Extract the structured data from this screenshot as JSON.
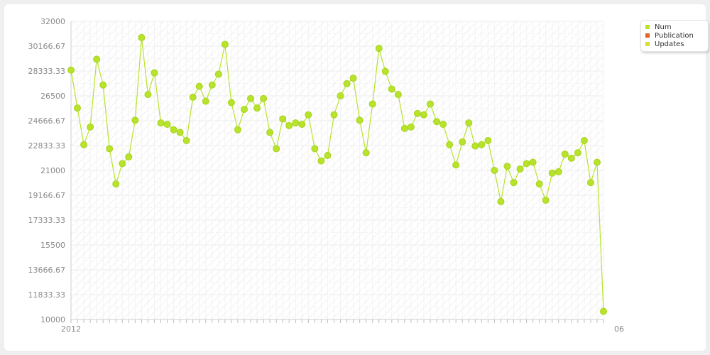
{
  "chart_data": {
    "type": "line",
    "title": "",
    "xlabel": "",
    "ylabel": "",
    "ylim": [
      10000,
      32000
    ],
    "ytick_labels": [
      "10000",
      "11833.33",
      "13666.67",
      "15500",
      "17333.33",
      "19166.67",
      "21000",
      "22833.33",
      "24666.67",
      "26500",
      "28333.33",
      "30166.67",
      "32000"
    ],
    "x_first_label": "2012",
    "x_last_label": "06",
    "grid": true,
    "legend_position": "top-right",
    "series": [
      {
        "name": "Num",
        "color": "#b7e32b",
        "values": [
          28400,
          25600,
          22900,
          24200,
          29200,
          27300,
          22600,
          20000,
          21500,
          22000,
          24700,
          30800,
          26600,
          28200,
          24500,
          24400,
          24000,
          23800,
          23200,
          26400,
          27200,
          26100,
          27300,
          28100,
          30300,
          26000,
          24000,
          25500,
          26300,
          25600,
          26300,
          23800,
          22600,
          24800,
          24300,
          24500,
          24400,
          25100,
          22600,
          21700,
          22100,
          25100,
          26500,
          27400,
          27800,
          24700,
          22300,
          25900,
          30000,
          28300,
          27000,
          26600,
          24100,
          24200,
          25200,
          25100,
          25900,
          24600,
          24400,
          22900,
          21400,
          23100,
          24500,
          22800,
          22900,
          23200,
          21000,
          18700,
          21300,
          20100,
          21100,
          21500,
          21600,
          20000,
          18800,
          20800,
          20900,
          22200,
          21900,
          22300,
          23200,
          20100,
          21600,
          10600
        ]
      }
    ],
    "legend": [
      {
        "name": "Num",
        "color": "#b7e32b"
      },
      {
        "name": "Publication",
        "color": "#e06422"
      },
      {
        "name": "Updates",
        "color": "#d8dc3e"
      }
    ]
  }
}
